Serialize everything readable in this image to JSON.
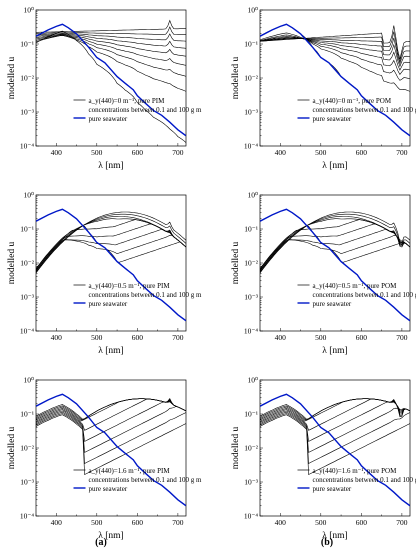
{
  "figure": {
    "panel_labels": [
      "(a)",
      "(b)"
    ]
  },
  "colors": {
    "seawater": "#0018c8",
    "particles": "#000000"
  },
  "chart_data": [
    {
      "type": "line",
      "ylabel": "modelled u",
      "xlabel": "λ [nm]",
      "xlim": [
        350,
        720
      ],
      "ylim_log10": [
        -4,
        0
      ],
      "yscale": "log",
      "xticks": [
        400,
        500,
        600,
        700
      ],
      "yticks": [
        "10⁰",
        "10⁻¹",
        "10⁻²",
        "10⁻³",
        "10⁻⁴"
      ],
      "legend": {
        "position": "bottom-right",
        "entries": [
          "a_y(440)=0 m⁻¹, pure PIM",
          "concentrations between 0.1 and 100 g m",
          "pure seawater"
        ]
      },
      "series": [
        {
          "name": "pure seawater",
          "x": [
            350,
            380,
            400,
            415,
            430,
            450,
            480,
            500,
            520,
            550,
            570,
            590,
            600,
            620,
            640,
            660,
            680,
            700,
            720
          ],
          "values": [
            0.17,
            0.26,
            0.33,
            0.38,
            0.3,
            0.2,
            0.08,
            0.04,
            0.028,
            0.011,
            0.007,
            0.0045,
            0.003,
            0.0018,
            0.0011,
            0.0008,
            0.0005,
            0.0003,
            0.0002
          ]
        }
      ]
    },
    {
      "type": "line",
      "ylabel": "modelled u",
      "xlabel": "λ [nm]",
      "xlim": [
        350,
        720
      ],
      "ylim_log10": [
        -4,
        0
      ],
      "yscale": "log",
      "xticks": [
        400,
        500,
        600,
        700
      ],
      "yticks": [
        "10⁰",
        "10⁻¹",
        "10⁻²",
        "10⁻³",
        "10⁻⁴"
      ],
      "legend": {
        "position": "bottom-right",
        "entries": [
          "a_y(440)=0 m⁻¹, pure POM",
          "concentrations between 0.1 and 100 g m",
          "pure seawater"
        ]
      },
      "series": [
        {
          "name": "pure seawater",
          "x": [
            350,
            380,
            400,
            415,
            430,
            450,
            480,
            500,
            520,
            550,
            570,
            590,
            600,
            620,
            640,
            660,
            680,
            700,
            720
          ],
          "values": [
            0.17,
            0.26,
            0.33,
            0.38,
            0.3,
            0.2,
            0.08,
            0.04,
            0.028,
            0.011,
            0.007,
            0.0045,
            0.003,
            0.0018,
            0.0011,
            0.0008,
            0.0005,
            0.0003,
            0.0002
          ]
        }
      ]
    },
    {
      "type": "line",
      "ylabel": "modelled u",
      "xlabel": "λ [nm]",
      "xlim": [
        350,
        720
      ],
      "ylim_log10": [
        -4,
        0
      ],
      "yscale": "log",
      "xticks": [
        400,
        500,
        600,
        700
      ],
      "yticks": [
        "10⁰",
        "10⁻¹",
        "10⁻²",
        "10⁻³",
        "10⁻⁴"
      ],
      "legend": {
        "position": "bottom-right",
        "entries": [
          "a_y(440)=0.5 m⁻¹, pure PIM",
          "concentrations between 0.1 and 100 g m",
          "pure seawater"
        ]
      },
      "series": [
        {
          "name": "pure seawater",
          "x": [
            350,
            380,
            400,
            415,
            430,
            450,
            480,
            500,
            520,
            550,
            570,
            590,
            600,
            620,
            640,
            660,
            680,
            700,
            720
          ],
          "values": [
            0.17,
            0.26,
            0.33,
            0.38,
            0.3,
            0.2,
            0.08,
            0.04,
            0.028,
            0.011,
            0.007,
            0.0045,
            0.003,
            0.0018,
            0.0011,
            0.0008,
            0.0005,
            0.0003,
            0.0002
          ]
        }
      ]
    },
    {
      "type": "line",
      "ylabel": "modelled u",
      "xlabel": "λ [nm]",
      "xlim": [
        350,
        720
      ],
      "ylim_log10": [
        -4,
        0
      ],
      "yscale": "log",
      "xticks": [
        400,
        500,
        600,
        700
      ],
      "yticks": [
        "10⁰",
        "10⁻¹",
        "10⁻²",
        "10⁻³",
        "10⁻⁴"
      ],
      "legend": {
        "position": "bottom-right",
        "entries": [
          "a_y(440)=0.5 m⁻¹, pure POM",
          "concentrations between 0.1 and 100 g m",
          "pure seawater"
        ]
      },
      "series": [
        {
          "name": "pure seawater",
          "x": [
            350,
            380,
            400,
            415,
            430,
            450,
            480,
            500,
            520,
            550,
            570,
            590,
            600,
            620,
            640,
            660,
            680,
            700,
            720
          ],
          "values": [
            0.17,
            0.26,
            0.33,
            0.38,
            0.3,
            0.2,
            0.08,
            0.04,
            0.028,
            0.011,
            0.007,
            0.0045,
            0.003,
            0.0018,
            0.0011,
            0.0008,
            0.0005,
            0.0003,
            0.0002
          ]
        }
      ]
    },
    {
      "type": "line",
      "ylabel": "modelled u",
      "xlabel": "λ [nm]",
      "xlim": [
        350,
        720
      ],
      "ylim_log10": [
        -4,
        0
      ],
      "yscale": "log",
      "xticks": [
        400,
        500,
        600,
        700
      ],
      "yticks": [
        "10⁰",
        "10⁻¹",
        "10⁻²",
        "10⁻³",
        "10⁻⁴"
      ],
      "legend": {
        "position": "bottom-right",
        "entries": [
          "a_y(440)=1.6 m⁻¹, pure PIM",
          "concentrations between 0.1 and 100 g m",
          "pure seawater"
        ]
      },
      "series": [
        {
          "name": "pure seawater",
          "x": [
            350,
            380,
            400,
            415,
            430,
            450,
            480,
            500,
            520,
            550,
            570,
            590,
            600,
            620,
            640,
            660,
            680,
            700,
            720
          ],
          "values": [
            0.17,
            0.26,
            0.33,
            0.38,
            0.3,
            0.2,
            0.08,
            0.04,
            0.028,
            0.011,
            0.007,
            0.0045,
            0.003,
            0.0018,
            0.0011,
            0.0008,
            0.0005,
            0.0003,
            0.0002
          ]
        }
      ]
    },
    {
      "type": "line",
      "ylabel": "modelled u",
      "xlabel": "λ [nm]",
      "xlim": [
        350,
        720
      ],
      "ylim_log10": [
        -4,
        0
      ],
      "yscale": "log",
      "xticks": [
        400,
        500,
        600,
        700
      ],
      "yticks": [
        "10⁰",
        "10⁻¹",
        "10⁻²",
        "10⁻³",
        "10⁻⁴"
      ],
      "legend": {
        "position": "bottom-right",
        "entries": [
          "a_y(440)=1.6 m⁻¹, pure POM",
          "concentrations between 0.1 and 100 g m",
          "pure seawater"
        ]
      },
      "series": [
        {
          "name": "pure seawater",
          "x": [
            350,
            380,
            400,
            415,
            430,
            450,
            480,
            500,
            520,
            550,
            570,
            590,
            600,
            620,
            640,
            660,
            680,
            700,
            720
          ],
          "values": [
            0.17,
            0.26,
            0.33,
            0.38,
            0.3,
            0.2,
            0.08,
            0.04,
            0.028,
            0.011,
            0.007,
            0.0045,
            0.003,
            0.0018,
            0.0011,
            0.0008,
            0.0005,
            0.0003,
            0.0002
          ]
        }
      ]
    }
  ]
}
